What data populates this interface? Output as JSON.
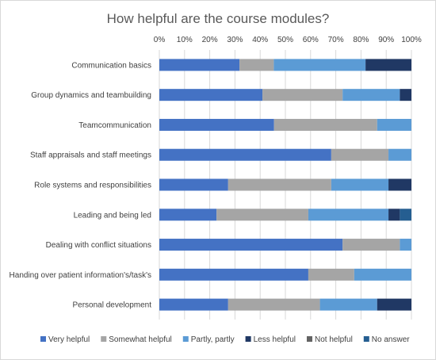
{
  "chart_data": {
    "type": "bar",
    "orientation": "horizontal",
    "stacked": "percent",
    "title": "How helpful are the course modules?",
    "xlabel": "",
    "ylabel": "",
    "xlim": [
      0,
      100
    ],
    "x_ticks": [
      "0%",
      "10%",
      "20%",
      "30%",
      "40%",
      "50%",
      "60%",
      "70%",
      "80%",
      "90%",
      "100%"
    ],
    "x_axis_position": "top",
    "grid": true,
    "legend_position": "bottom",
    "categories": [
      "Communication basics",
      "Group dynamics and teambuilding",
      "Teamcommunication",
      "Staff appraisals and staff meetings",
      "Role systems and responsibilities",
      "Leading and being led",
      "Dealing with conflict situations",
      "Handing over patient information's/task's",
      "Personal development"
    ],
    "series": [
      {
        "name": "Very helpful",
        "color": "#4472c4",
        "values": [
          31.8,
          40.9,
          45.5,
          68.2,
          27.3,
          22.7,
          72.7,
          59.1,
          27.3
        ]
      },
      {
        "name": "Somewhat helpful",
        "color": "#a5a5a5",
        "values": [
          13.6,
          31.8,
          40.9,
          22.7,
          40.9,
          36.4,
          22.7,
          18.2,
          36.4
        ]
      },
      {
        "name": "Partly, partly",
        "color": "#5b9bd5",
        "values": [
          36.4,
          22.7,
          13.6,
          9.1,
          22.7,
          31.8,
          4.6,
          22.7,
          22.7
        ]
      },
      {
        "name": "Less helpful",
        "color": "#203864",
        "values": [
          18.2,
          4.6,
          0,
          0,
          9.1,
          4.5,
          0,
          0,
          13.6
        ]
      },
      {
        "name": "Not helpful",
        "color": "#636363",
        "values": [
          0,
          0,
          0,
          0,
          0,
          0,
          0,
          0,
          0
        ]
      },
      {
        "name": "No answer",
        "color": "#255e91",
        "values": [
          0,
          0,
          0,
          0,
          0,
          4.6,
          0,
          0,
          0
        ]
      }
    ]
  }
}
